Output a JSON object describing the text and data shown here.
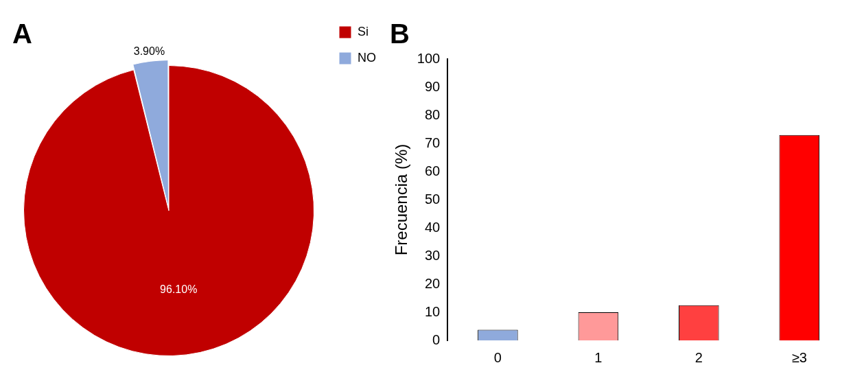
{
  "chart_data": [
    {
      "type": "pie",
      "title": "A",
      "categories": [
        "Si",
        "NO"
      ],
      "values": [
        96.1,
        3.9
      ],
      "colors": [
        "#c00000",
        "#8faadc"
      ],
      "value_labels": [
        "96.10%",
        "3.90%"
      ],
      "legend": "top right"
    },
    {
      "type": "bar",
      "title": "B",
      "categories": [
        "0",
        "1",
        "2",
        "≥3"
      ],
      "values": [
        3.8,
        10,
        12.5,
        73
      ],
      "colors": [
        "#8faadc",
        "#ff9999",
        "#ff4040",
        "#ff0000"
      ],
      "ylabel": "Frecuencia (%)",
      "ylim": [
        0,
        100
      ],
      "yticks": [
        0,
        10,
        20,
        30,
        40,
        50,
        60,
        70,
        80,
        90,
        100
      ],
      "grid": false
    }
  ]
}
